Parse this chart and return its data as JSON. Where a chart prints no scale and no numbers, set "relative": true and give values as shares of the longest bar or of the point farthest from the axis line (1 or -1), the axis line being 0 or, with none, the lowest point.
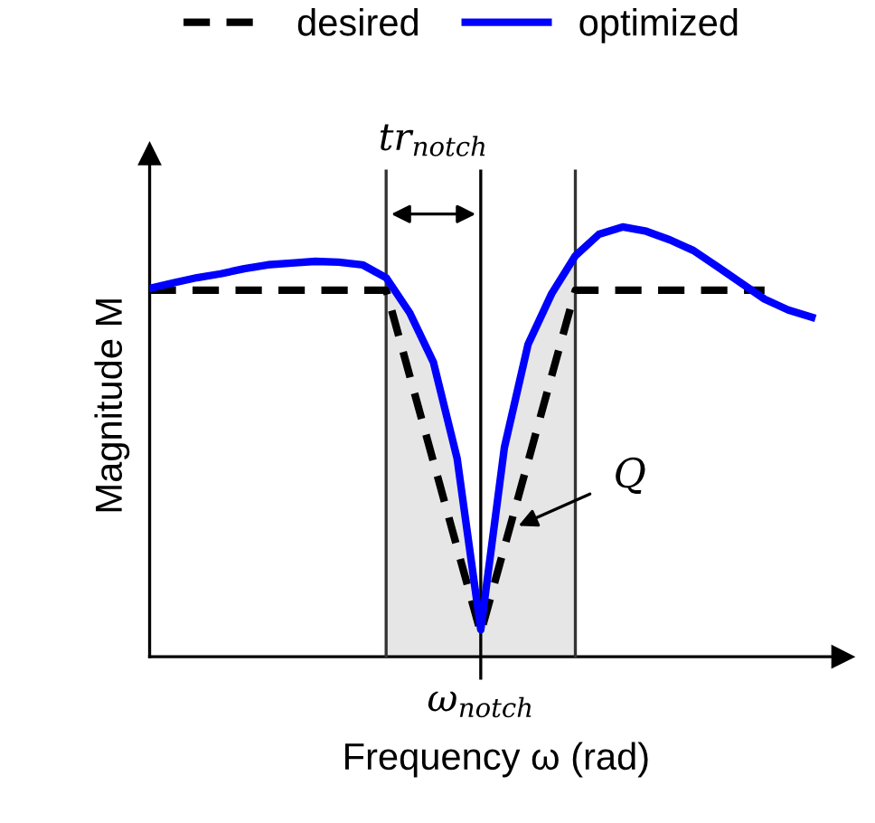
{
  "chart_data": {
    "type": "line",
    "relative": true,
    "xlabel": "Frequency ω (rad)",
    "ylabel": "Magnitude M",
    "categories": [
      null,
      null,
      null,
      null,
      null,
      null,
      null,
      null,
      null,
      null,
      null,
      null,
      null,
      null,
      null,
      null,
      null,
      null,
      null,
      null,
      null,
      null,
      null,
      null,
      null,
      null,
      null,
      null,
      null,
      null
    ],
    "series": [
      {
        "name": "desired",
        "color": "#000000",
        "line_style": "dashed",
        "values": [
          0.853,
          0.853,
          0.853,
          0.853,
          0.853,
          0.853,
          0.853,
          0.853,
          0.853,
          0.853,
          0.853,
          0.653,
          0.454,
          0.254,
          0.055,
          0.255,
          0.454,
          0.654,
          0.853,
          0.853,
          0.853,
          0.853,
          0.853,
          0.853,
          0.853,
          0.853,
          0.853,
          null,
          null,
          null
        ]
      },
      {
        "name": "optimized",
        "color": "#0000ff",
        "line_style": "solid",
        "values": [
          0.857,
          0.87,
          0.882,
          0.891,
          0.903,
          0.912,
          0.916,
          0.92,
          0.918,
          0.912,
          0.882,
          0.8,
          0.685,
          0.462,
          0.063,
          0.487,
          0.727,
          0.845,
          0.933,
          0.983,
          1.0,
          0.99,
          0.97,
          0.945,
          0.908,
          0.87,
          0.832,
          0.807,
          0.79,
          null
        ]
      }
    ],
    "annotations": [
      "tr$_{notch}$",
      "Q",
      "ω$_{notch}$"
    ],
    "legend": "top",
    "marker": "none"
  }
}
